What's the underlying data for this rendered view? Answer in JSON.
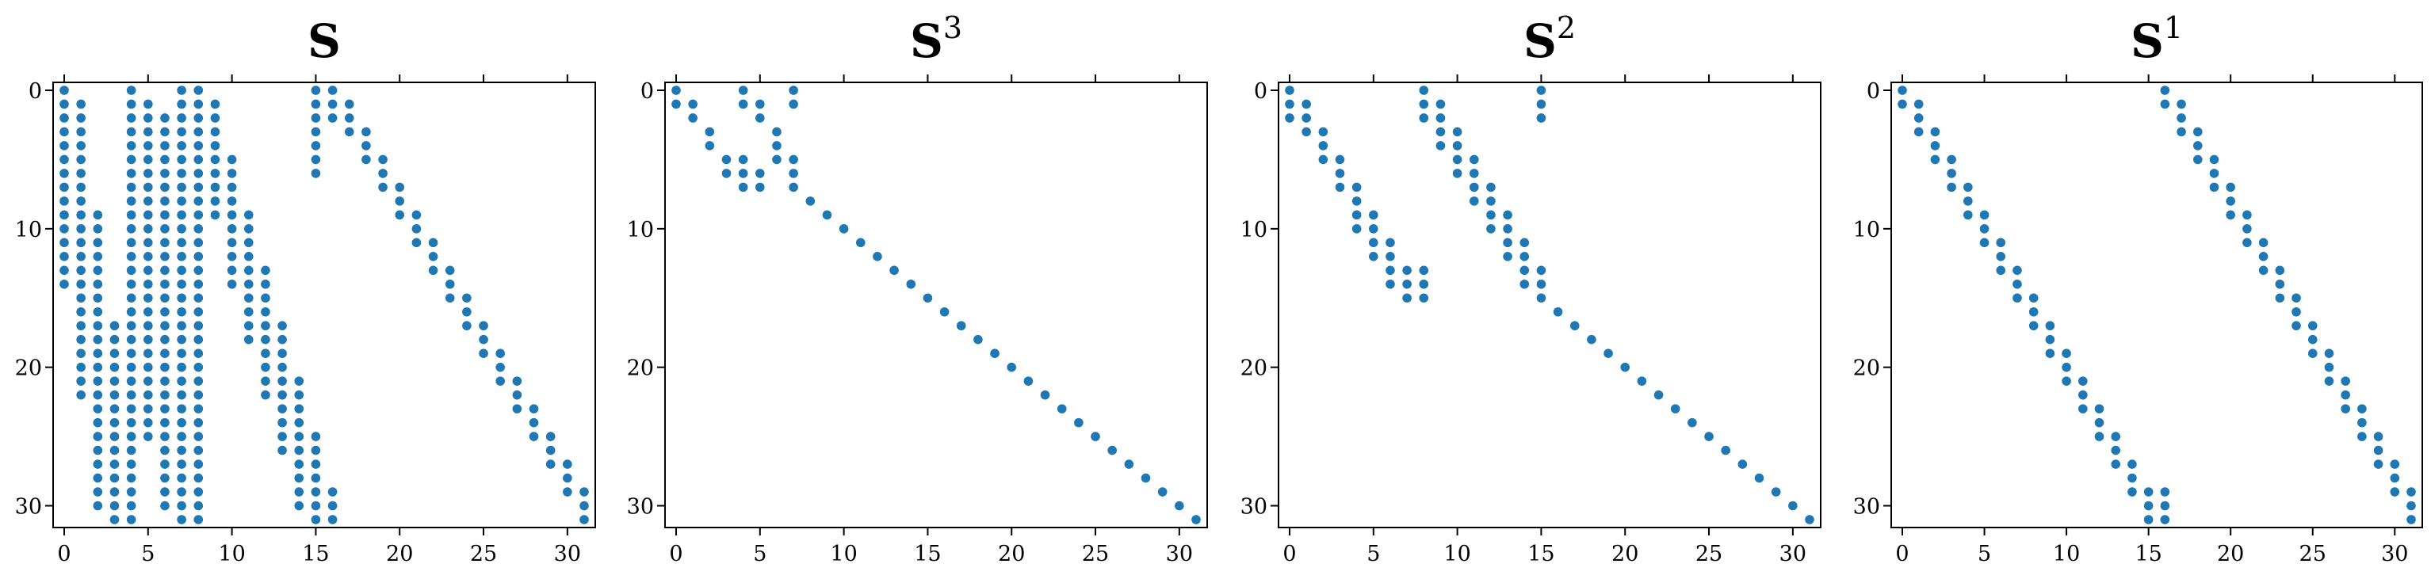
{
  "style": {
    "marker_color": "#1f77b4",
    "axis_color": "#000000"
  },
  "chart_data": [
    {
      "type": "scatter",
      "title": "S",
      "superscript": "",
      "xlim": [
        0,
        31
      ],
      "ylim": [
        0,
        31
      ],
      "x_ticks": [
        0,
        5,
        10,
        15,
        20,
        25,
        30
      ],
      "y_ticks": [
        0,
        10,
        20,
        30
      ],
      "y_inverted": true,
      "columns": [
        {
          "x": 0,
          "rows": [
            [
              0,
              14
            ]
          ]
        },
        {
          "x": 1,
          "rows": [
            [
              1,
              22
            ]
          ]
        },
        {
          "x": 2,
          "rows": [
            [
              9,
              30
            ]
          ]
        },
        {
          "x": 3,
          "rows": [
            [
              17,
              31
            ]
          ]
        },
        {
          "x": 4,
          "rows": [
            [
              0,
              31
            ]
          ]
        },
        {
          "x": 5,
          "rows": [
            [
              1,
              25
            ]
          ]
        },
        {
          "x": 6,
          "rows": [
            [
              2,
              30
            ]
          ]
        },
        {
          "x": 7,
          "rows": [
            [
              0,
              31
            ]
          ]
        },
        {
          "x": 8,
          "rows": [
            [
              0,
              31
            ]
          ]
        },
        {
          "x": 9,
          "rows": [
            [
              1,
              9
            ]
          ]
        },
        {
          "x": 10,
          "rows": [
            [
              5,
              14
            ]
          ]
        },
        {
          "x": 11,
          "rows": [
            [
              9,
              18
            ]
          ]
        },
        {
          "x": 12,
          "rows": [
            [
              13,
              22
            ]
          ]
        },
        {
          "x": 13,
          "rows": [
            [
              17,
              26
            ]
          ]
        },
        {
          "x": 14,
          "rows": [
            [
              21,
              30
            ]
          ]
        },
        {
          "x": 15,
          "rows": [
            [
              0,
              6
            ],
            [
              25,
              31
            ]
          ]
        },
        {
          "x": 16,
          "rows": [
            [
              0,
              2
            ],
            [
              29,
              31
            ]
          ]
        },
        {
          "x": 17,
          "rows": [
            [
              1,
              3
            ]
          ]
        },
        {
          "x": 18,
          "rows": [
            [
              3,
              5
            ]
          ]
        },
        {
          "x": 19,
          "rows": [
            [
              5,
              7
            ]
          ]
        },
        {
          "x": 20,
          "rows": [
            [
              7,
              9
            ]
          ]
        },
        {
          "x": 21,
          "rows": [
            [
              9,
              11
            ]
          ]
        },
        {
          "x": 22,
          "rows": [
            [
              11,
              13
            ]
          ]
        },
        {
          "x": 23,
          "rows": [
            [
              13,
              15
            ]
          ]
        },
        {
          "x": 24,
          "rows": [
            [
              15,
              17
            ]
          ]
        },
        {
          "x": 25,
          "rows": [
            [
              17,
              19
            ]
          ]
        },
        {
          "x": 26,
          "rows": [
            [
              19,
              21
            ]
          ]
        },
        {
          "x": 27,
          "rows": [
            [
              21,
              23
            ]
          ]
        },
        {
          "x": 28,
          "rows": [
            [
              23,
              25
            ]
          ]
        },
        {
          "x": 29,
          "rows": [
            [
              25,
              27
            ]
          ]
        },
        {
          "x": 30,
          "rows": [
            [
              27,
              29
            ]
          ]
        },
        {
          "x": 31,
          "rows": [
            [
              29,
              31
            ]
          ]
        }
      ]
    },
    {
      "type": "scatter",
      "title": "S",
      "superscript": "3",
      "xlim": [
        0,
        31
      ],
      "ylim": [
        0,
        31
      ],
      "x_ticks": [
        0,
        5,
        10,
        15,
        20,
        25,
        30
      ],
      "y_ticks": [
        0,
        10,
        20,
        30
      ],
      "y_inverted": true,
      "columns": [
        {
          "x": 0,
          "rows": [
            [
              0,
              1
            ]
          ]
        },
        {
          "x": 1,
          "rows": [
            [
              1,
              2
            ]
          ]
        },
        {
          "x": 2,
          "rows": [
            [
              3,
              4
            ]
          ]
        },
        {
          "x": 3,
          "rows": [
            [
              5,
              6
            ]
          ]
        },
        {
          "x": 4,
          "rows": [
            [
              0,
              1
            ],
            [
              5,
              7
            ]
          ]
        },
        {
          "x": 5,
          "rows": [
            [
              1,
              2
            ],
            [
              6,
              7
            ]
          ]
        },
        {
          "x": 6,
          "rows": [
            [
              3,
              5
            ]
          ]
        },
        {
          "x": 7,
          "rows": [
            [
              0,
              1
            ],
            [
              5,
              7
            ]
          ]
        },
        {
          "x": 8,
          "rows": [
            [
              8,
              8
            ]
          ]
        },
        {
          "x": 9,
          "rows": [
            [
              9,
              9
            ]
          ]
        },
        {
          "x": 10,
          "rows": [
            [
              10,
              10
            ]
          ]
        },
        {
          "x": 11,
          "rows": [
            [
              11,
              11
            ]
          ]
        },
        {
          "x": 12,
          "rows": [
            [
              12,
              12
            ]
          ]
        },
        {
          "x": 13,
          "rows": [
            [
              13,
              13
            ]
          ]
        },
        {
          "x": 14,
          "rows": [
            [
              14,
              14
            ]
          ]
        },
        {
          "x": 15,
          "rows": [
            [
              15,
              15
            ]
          ]
        },
        {
          "x": 16,
          "rows": [
            [
              16,
              16
            ]
          ]
        },
        {
          "x": 17,
          "rows": [
            [
              17,
              17
            ]
          ]
        },
        {
          "x": 18,
          "rows": [
            [
              18,
              18
            ]
          ]
        },
        {
          "x": 19,
          "rows": [
            [
              19,
              19
            ]
          ]
        },
        {
          "x": 20,
          "rows": [
            [
              20,
              20
            ]
          ]
        },
        {
          "x": 21,
          "rows": [
            [
              21,
              21
            ]
          ]
        },
        {
          "x": 22,
          "rows": [
            [
              22,
              22
            ]
          ]
        },
        {
          "x": 23,
          "rows": [
            [
              23,
              23
            ]
          ]
        },
        {
          "x": 24,
          "rows": [
            [
              24,
              24
            ]
          ]
        },
        {
          "x": 25,
          "rows": [
            [
              25,
              25
            ]
          ]
        },
        {
          "x": 26,
          "rows": [
            [
              26,
              26
            ]
          ]
        },
        {
          "x": 27,
          "rows": [
            [
              27,
              27
            ]
          ]
        },
        {
          "x": 28,
          "rows": [
            [
              28,
              28
            ]
          ]
        },
        {
          "x": 29,
          "rows": [
            [
              29,
              29
            ]
          ]
        },
        {
          "x": 30,
          "rows": [
            [
              30,
              30
            ]
          ]
        },
        {
          "x": 31,
          "rows": [
            [
              31,
              31
            ]
          ]
        }
      ]
    },
    {
      "type": "scatter",
      "title": "S",
      "superscript": "2",
      "xlim": [
        0,
        31
      ],
      "ylim": [
        0,
        31
      ],
      "x_ticks": [
        0,
        5,
        10,
        15,
        20,
        25,
        30
      ],
      "y_ticks": [
        0,
        10,
        20,
        30
      ],
      "y_inverted": true,
      "columns": [
        {
          "x": 0,
          "rows": [
            [
              0,
              2
            ]
          ]
        },
        {
          "x": 1,
          "rows": [
            [
              1,
              3
            ]
          ]
        },
        {
          "x": 2,
          "rows": [
            [
              3,
              5
            ]
          ]
        },
        {
          "x": 3,
          "rows": [
            [
              5,
              7
            ]
          ]
        },
        {
          "x": 4,
          "rows": [
            [
              7,
              10
            ]
          ]
        },
        {
          "x": 5,
          "rows": [
            [
              9,
              12
            ]
          ]
        },
        {
          "x": 6,
          "rows": [
            [
              11,
              14
            ]
          ]
        },
        {
          "x": 7,
          "rows": [
            [
              13,
              15
            ]
          ]
        },
        {
          "x": 8,
          "rows": [
            [
              0,
              2
            ],
            [
              13,
              15
            ]
          ]
        },
        {
          "x": 9,
          "rows": [
            [
              1,
              4
            ]
          ]
        },
        {
          "x": 10,
          "rows": [
            [
              3,
              6
            ]
          ]
        },
        {
          "x": 11,
          "rows": [
            [
              5,
              8
            ]
          ]
        },
        {
          "x": 12,
          "rows": [
            [
              7,
              10
            ]
          ]
        },
        {
          "x": 13,
          "rows": [
            [
              9,
              12
            ]
          ]
        },
        {
          "x": 14,
          "rows": [
            [
              11,
              14
            ]
          ]
        },
        {
          "x": 15,
          "rows": [
            [
              0,
              2
            ],
            [
              13,
              15
            ]
          ]
        },
        {
          "x": 16,
          "rows": [
            [
              16,
              16
            ]
          ]
        },
        {
          "x": 17,
          "rows": [
            [
              17,
              17
            ]
          ]
        },
        {
          "x": 18,
          "rows": [
            [
              18,
              18
            ]
          ]
        },
        {
          "x": 19,
          "rows": [
            [
              19,
              19
            ]
          ]
        },
        {
          "x": 20,
          "rows": [
            [
              20,
              20
            ]
          ]
        },
        {
          "x": 21,
          "rows": [
            [
              21,
              21
            ]
          ]
        },
        {
          "x": 22,
          "rows": [
            [
              22,
              22
            ]
          ]
        },
        {
          "x": 23,
          "rows": [
            [
              23,
              23
            ]
          ]
        },
        {
          "x": 24,
          "rows": [
            [
              24,
              24
            ]
          ]
        },
        {
          "x": 25,
          "rows": [
            [
              25,
              25
            ]
          ]
        },
        {
          "x": 26,
          "rows": [
            [
              26,
              26
            ]
          ]
        },
        {
          "x": 27,
          "rows": [
            [
              27,
              27
            ]
          ]
        },
        {
          "x": 28,
          "rows": [
            [
              28,
              28
            ]
          ]
        },
        {
          "x": 29,
          "rows": [
            [
              29,
              29
            ]
          ]
        },
        {
          "x": 30,
          "rows": [
            [
              30,
              30
            ]
          ]
        },
        {
          "x": 31,
          "rows": [
            [
              31,
              31
            ]
          ]
        }
      ]
    },
    {
      "type": "scatter",
      "title": "S",
      "superscript": "1",
      "xlim": [
        0,
        31
      ],
      "ylim": [
        0,
        31
      ],
      "x_ticks": [
        0,
        5,
        10,
        15,
        20,
        25,
        30
      ],
      "y_ticks": [
        0,
        10,
        20,
        30
      ],
      "y_inverted": true,
      "columns": [
        {
          "x": 0,
          "rows": [
            [
              0,
              1
            ]
          ]
        },
        {
          "x": 1,
          "rows": [
            [
              1,
              3
            ]
          ]
        },
        {
          "x": 2,
          "rows": [
            [
              3,
              5
            ]
          ]
        },
        {
          "x": 3,
          "rows": [
            [
              5,
              7
            ]
          ]
        },
        {
          "x": 4,
          "rows": [
            [
              7,
              9
            ]
          ]
        },
        {
          "x": 5,
          "rows": [
            [
              9,
              11
            ]
          ]
        },
        {
          "x": 6,
          "rows": [
            [
              11,
              13
            ]
          ]
        },
        {
          "x": 7,
          "rows": [
            [
              13,
              15
            ]
          ]
        },
        {
          "x": 8,
          "rows": [
            [
              15,
              17
            ]
          ]
        },
        {
          "x": 9,
          "rows": [
            [
              17,
              19
            ]
          ]
        },
        {
          "x": 10,
          "rows": [
            [
              19,
              21
            ]
          ]
        },
        {
          "x": 11,
          "rows": [
            [
              21,
              23
            ]
          ]
        },
        {
          "x": 12,
          "rows": [
            [
              23,
              25
            ]
          ]
        },
        {
          "x": 13,
          "rows": [
            [
              25,
              27
            ]
          ]
        },
        {
          "x": 14,
          "rows": [
            [
              27,
              29
            ]
          ]
        },
        {
          "x": 15,
          "rows": [
            [
              29,
              31
            ]
          ]
        },
        {
          "x": 16,
          "rows": [
            [
              0,
              1
            ],
            [
              29,
              31
            ]
          ]
        },
        {
          "x": 17,
          "rows": [
            [
              1,
              3
            ]
          ]
        },
        {
          "x": 18,
          "rows": [
            [
              3,
              5
            ]
          ]
        },
        {
          "x": 19,
          "rows": [
            [
              5,
              7
            ]
          ]
        },
        {
          "x": 20,
          "rows": [
            [
              7,
              9
            ]
          ]
        },
        {
          "x": 21,
          "rows": [
            [
              9,
              11
            ]
          ]
        },
        {
          "x": 22,
          "rows": [
            [
              11,
              13
            ]
          ]
        },
        {
          "x": 23,
          "rows": [
            [
              13,
              15
            ]
          ]
        },
        {
          "x": 24,
          "rows": [
            [
              15,
              17
            ]
          ]
        },
        {
          "x": 25,
          "rows": [
            [
              17,
              19
            ]
          ]
        },
        {
          "x": 26,
          "rows": [
            [
              19,
              21
            ]
          ]
        },
        {
          "x": 27,
          "rows": [
            [
              21,
              23
            ]
          ]
        },
        {
          "x": 28,
          "rows": [
            [
              23,
              25
            ]
          ]
        },
        {
          "x": 29,
          "rows": [
            [
              25,
              27
            ]
          ]
        },
        {
          "x": 30,
          "rows": [
            [
              27,
              29
            ]
          ]
        },
        {
          "x": 31,
          "rows": [
            [
              29,
              31
            ]
          ]
        }
      ]
    }
  ]
}
